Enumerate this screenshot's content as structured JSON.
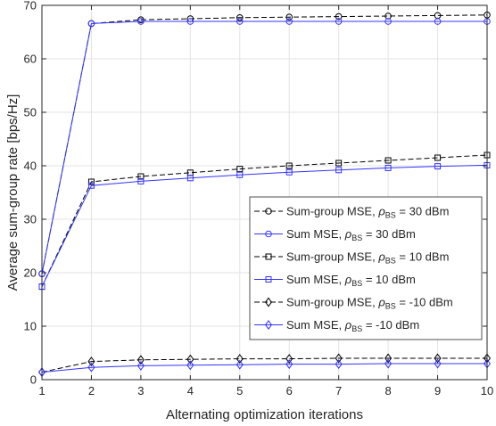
{
  "chart_data": {
    "type": "line",
    "xlabel": "Alternating optimization iterations",
    "ylabel": "Average sum-group rate [bps/Hz]",
    "xlim": [
      1,
      10
    ],
    "ylim": [
      0,
      70
    ],
    "xticks": [
      1,
      2,
      3,
      4,
      5,
      6,
      7,
      8,
      9,
      10
    ],
    "yticks": [
      0,
      10,
      20,
      30,
      40,
      50,
      60,
      70
    ],
    "grid": true,
    "legend_position": "lower-right",
    "x": [
      1,
      2,
      3,
      4,
      5,
      6,
      7,
      8,
      9,
      10
    ],
    "series": [
      {
        "name": "Sum-group MSE, ρ_BS = 30 dBm",
        "label_main": "Sum-group MSE, ",
        "label_rho": "ρ",
        "label_sub": "BS",
        "label_tail": " = 30 dBm",
        "color": "#000000",
        "dash": "dashed",
        "marker": "circle",
        "values": [
          19.8,
          66.6,
          67.3,
          67.5,
          67.7,
          67.8,
          67.9,
          68.0,
          68.1,
          68.2
        ]
      },
      {
        "name": "Sum MSE, ρ_BS = 30 dBm",
        "label_main": "Sum MSE, ",
        "label_rho": "ρ",
        "label_sub": "BS",
        "label_tail": " = 30 dBm",
        "color": "#3333ff",
        "dash": "solid",
        "marker": "circle",
        "values": [
          19.8,
          66.6,
          67.0,
          67.0,
          67.0,
          67.0,
          67.0,
          67.0,
          67.0,
          67.0
        ]
      },
      {
        "name": "Sum-group MSE, ρ_BS = 10 dBm",
        "label_main": "Sum-group MSE, ",
        "label_rho": "ρ",
        "label_sub": "BS",
        "label_tail": " = 10 dBm",
        "color": "#000000",
        "dash": "dashed",
        "marker": "square",
        "values": [
          17.4,
          37.0,
          38.0,
          38.7,
          39.4,
          40.0,
          40.5,
          41.0,
          41.5,
          42.0
        ]
      },
      {
        "name": "Sum MSE, ρ_BS = 10 dBm",
        "label_main": "Sum MSE, ",
        "label_rho": "ρ",
        "label_sub": "BS",
        "label_tail": " = 10 dBm",
        "color": "#3333ff",
        "dash": "solid",
        "marker": "square",
        "values": [
          17.4,
          36.3,
          37.1,
          37.7,
          38.3,
          38.8,
          39.2,
          39.6,
          39.9,
          40.1
        ]
      },
      {
        "name": "Sum-group MSE, ρ_BS = -10 dBm",
        "label_main": "Sum-group MSE, ",
        "label_rho": "ρ",
        "label_sub": "BS",
        "label_tail": " = -10 dBm",
        "color": "#000000",
        "dash": "dashed",
        "marker": "diamond",
        "values": [
          1.4,
          3.4,
          3.7,
          3.8,
          3.9,
          3.9,
          4.0,
          4.0,
          4.0,
          4.0
        ]
      },
      {
        "name": "Sum MSE, ρ_BS = -10 dBm",
        "label_main": "Sum MSE, ",
        "label_rho": "ρ",
        "label_sub": "BS",
        "label_tail": " = -10 dBm",
        "color": "#3333ff",
        "dash": "solid",
        "marker": "diamond",
        "values": [
          1.4,
          2.3,
          2.6,
          2.7,
          2.8,
          2.9,
          2.9,
          3.0,
          3.0,
          3.0
        ]
      }
    ]
  }
}
